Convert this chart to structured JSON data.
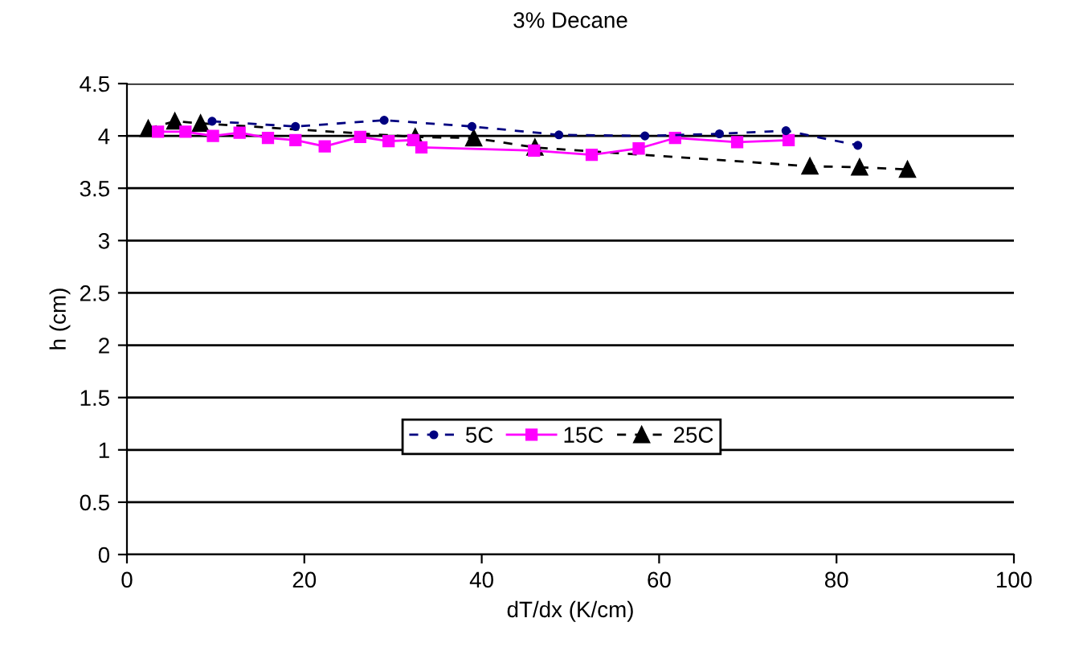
{
  "chart_data": {
    "type": "line",
    "title": "3% Decane",
    "xlabel": "dT/dx (K/cm)",
    "ylabel": "h (cm)",
    "xlim": [
      0,
      100
    ],
    "xticks": [
      0,
      20,
      40,
      60,
      80,
      100
    ],
    "ylim": [
      0,
      4.5
    ],
    "yticks": [
      0,
      0.5,
      1,
      1.5,
      2,
      2.5,
      3,
      3.5,
      4,
      4.5
    ],
    "grid": "y",
    "legend": "center",
    "series": [
      {
        "name": "5C",
        "color": "#000080",
        "marker": "circle",
        "line_style": "dashed",
        "x": [
          9.6,
          19,
          29,
          38.9,
          48.7,
          58.4,
          66.8,
          74.3,
          82.4
        ],
        "values": [
          4.14,
          4.09,
          4.15,
          4.09,
          4.01,
          4.0,
          4.02,
          4.05,
          3.91
        ]
      },
      {
        "name": "15C",
        "color": "#ff00ff",
        "marker": "square",
        "line_style": "solid",
        "x": [
          3.5,
          6.6,
          9.7,
          12.7,
          15.9,
          19,
          22.3,
          26.3,
          29.5,
          32.3,
          33.2,
          45.9,
          52.4,
          57.7,
          61.8,
          68.8,
          74.6
        ],
        "values": [
          4.04,
          4.04,
          4.0,
          4.03,
          3.98,
          3.96,
          3.9,
          3.99,
          3.95,
          3.96,
          3.89,
          3.86,
          3.82,
          3.88,
          3.98,
          3.94,
          3.96
        ]
      },
      {
        "name": "25C",
        "color": "#000000",
        "marker": "triangle",
        "line_style": "dashed",
        "x": [
          2.4,
          5.4,
          8.3,
          32.5,
          39.1,
          46,
          77,
          82.6,
          88
        ],
        "values": [
          4.07,
          4.14,
          4.12,
          3.99,
          3.98,
          3.89,
          3.71,
          3.7,
          3.68
        ]
      }
    ]
  }
}
